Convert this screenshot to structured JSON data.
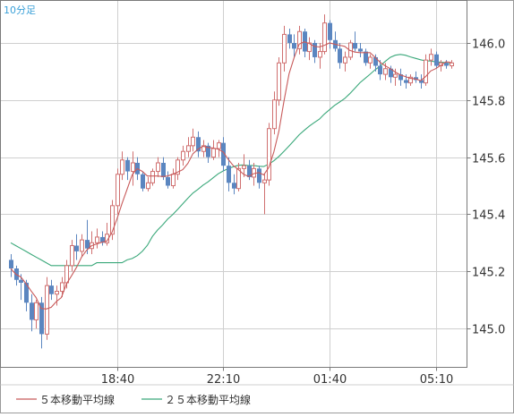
{
  "chart_data": {
    "type": "candlestick",
    "timeframe_label": "10分足",
    "y_ticks": [
      145.0,
      145.2,
      145.4,
      145.6,
      145.8,
      146.0
    ],
    "y_tick_labels": [
      "145.0",
      "145.2",
      "145.4",
      "145.6",
      "145.8",
      "146.0"
    ],
    "ylim": [
      144.9,
      146.12
    ],
    "x_tick_labels": [
      "18:40",
      "22:10",
      "01:40",
      "05:10"
    ],
    "x_tick_index": [
      21,
      42,
      63,
      84
    ],
    "n_bars": 88,
    "legend": [
      {
        "label": "５本移動平均線",
        "color": "#c85a5a"
      },
      {
        "label": "２５本移動平均線",
        "color": "#3aa87a"
      }
    ],
    "colors": {
      "up": "#d07070",
      "down": "#5b86c0",
      "ma5": "#c85a5a",
      "ma25": "#3aa87a",
      "grid": "#cfcfcf",
      "axis": "#7a7a7a",
      "text": "#333333",
      "timeframe": "#3aa0d8"
    },
    "candles": [
      [
        145.24,
        145.26,
        145.18,
        145.21
      ],
      [
        145.21,
        145.22,
        145.15,
        145.17
      ],
      [
        145.17,
        145.19,
        145.1,
        145.16
      ],
      [
        145.16,
        145.17,
        145.06,
        145.09
      ],
      [
        145.09,
        145.12,
        144.99,
        145.03
      ],
      [
        145.03,
        145.1,
        145.0,
        145.09
      ],
      [
        145.09,
        145.11,
        144.93,
        144.98
      ],
      [
        144.98,
        145.18,
        144.96,
        145.15
      ],
      [
        145.15,
        145.17,
        145.1,
        145.12
      ],
      [
        145.12,
        145.15,
        145.08,
        145.13
      ],
      [
        145.13,
        145.18,
        145.11,
        145.16
      ],
      [
        145.16,
        145.24,
        145.14,
        145.22
      ],
      [
        145.22,
        145.31,
        145.2,
        145.29
      ],
      [
        145.29,
        145.33,
        145.24,
        145.27
      ],
      [
        145.27,
        145.33,
        145.25,
        145.31
      ],
      [
        145.31,
        145.38,
        145.26,
        145.28
      ],
      [
        145.28,
        145.34,
        145.26,
        145.3
      ],
      [
        145.3,
        145.35,
        145.28,
        145.32
      ],
      [
        145.32,
        145.34,
        145.29,
        145.3
      ],
      [
        145.3,
        145.37,
        145.29,
        145.33
      ],
      [
        145.33,
        145.45,
        145.31,
        145.43
      ],
      [
        145.43,
        145.56,
        145.4,
        145.54
      ],
      [
        145.54,
        145.62,
        145.52,
        145.59
      ],
      [
        145.59,
        145.6,
        145.52,
        145.55
      ],
      [
        145.55,
        145.62,
        145.5,
        145.58
      ],
      [
        145.58,
        145.6,
        145.52,
        145.54
      ],
      [
        145.54,
        145.55,
        145.48,
        145.49
      ],
      [
        145.49,
        145.53,
        145.48,
        145.51
      ],
      [
        145.51,
        145.56,
        145.5,
        145.55
      ],
      [
        145.55,
        145.6,
        145.53,
        145.58
      ],
      [
        145.58,
        145.6,
        145.52,
        145.53
      ],
      [
        145.53,
        145.55,
        145.49,
        145.5
      ],
      [
        145.5,
        145.56,
        145.49,
        145.54
      ],
      [
        145.54,
        145.6,
        145.52,
        145.59
      ],
      [
        145.59,
        145.64,
        145.57,
        145.62
      ],
      [
        145.62,
        145.67,
        145.6,
        145.64
      ],
      [
        145.64,
        145.7,
        145.62,
        145.67
      ],
      [
        145.67,
        145.69,
        145.6,
        145.62
      ],
      [
        145.62,
        145.66,
        145.6,
        145.64
      ],
      [
        145.64,
        145.65,
        145.58,
        145.6
      ],
      [
        145.6,
        145.66,
        145.59,
        145.63
      ],
      [
        145.63,
        145.66,
        145.6,
        145.65
      ],
      [
        145.65,
        145.67,
        145.55,
        145.57
      ],
      [
        145.57,
        145.6,
        145.48,
        145.51
      ],
      [
        145.51,
        145.54,
        145.47,
        145.49
      ],
      [
        145.49,
        145.58,
        145.48,
        145.56
      ],
      [
        145.56,
        145.61,
        145.53,
        145.57
      ],
      [
        145.57,
        145.59,
        145.52,
        145.53
      ],
      [
        145.53,
        145.58,
        145.5,
        145.56
      ],
      [
        145.56,
        145.57,
        145.49,
        145.51
      ],
      [
        145.51,
        145.54,
        145.4,
        145.52
      ],
      [
        145.52,
        145.72,
        145.5,
        145.7
      ],
      [
        145.7,
        145.83,
        145.68,
        145.8
      ],
      [
        145.8,
        145.95,
        145.78,
        145.93
      ],
      [
        145.93,
        146.06,
        145.9,
        146.03
      ],
      [
        146.03,
        146.05,
        145.98,
        146.0
      ],
      [
        146.0,
        146.03,
        145.95,
        145.98
      ],
      [
        145.98,
        146.06,
        145.96,
        146.04
      ],
      [
        146.04,
        146.05,
        145.95,
        145.97
      ],
      [
        145.97,
        146.02,
        145.94,
        146.0
      ],
      [
        146.0,
        146.01,
        145.93,
        145.95
      ],
      [
        145.95,
        146.0,
        145.91,
        145.97
      ],
      [
        145.97,
        146.1,
        145.96,
        146.07
      ],
      [
        146.07,
        146.08,
        145.98,
        146.01
      ],
      [
        146.01,
        146.04,
        145.97,
        145.98
      ],
      [
        145.98,
        146.0,
        145.91,
        145.93
      ],
      [
        145.93,
        145.97,
        145.9,
        145.95
      ],
      [
        145.95,
        146.01,
        145.94,
        146.0
      ],
      [
        146.0,
        146.04,
        145.97,
        145.98
      ],
      [
        145.98,
        146.0,
        145.95,
        145.97
      ],
      [
        145.97,
        145.98,
        145.92,
        145.93
      ],
      [
        145.93,
        145.96,
        145.91,
        145.95
      ],
      [
        145.95,
        145.96,
        145.9,
        145.92
      ],
      [
        145.92,
        145.94,
        145.87,
        145.89
      ],
      [
        145.89,
        145.93,
        145.87,
        145.91
      ],
      [
        145.91,
        145.92,
        145.86,
        145.88
      ],
      [
        145.88,
        145.91,
        145.85,
        145.89
      ],
      [
        145.89,
        145.91,
        145.85,
        145.87
      ],
      [
        145.87,
        145.89,
        145.84,
        145.86
      ],
      [
        145.86,
        145.89,
        145.85,
        145.88
      ],
      [
        145.88,
        145.9,
        145.86,
        145.87
      ],
      [
        145.87,
        145.89,
        145.84,
        145.86
      ],
      [
        145.86,
        145.96,
        145.85,
        145.94
      ],
      [
        145.94,
        145.98,
        145.92,
        145.96
      ],
      [
        145.96,
        145.97,
        145.91,
        145.92
      ],
      [
        145.92,
        145.94,
        145.9,
        145.93
      ],
      [
        145.93,
        145.94,
        145.91,
        145.92
      ],
      [
        145.92,
        145.94,
        145.91,
        145.93
      ]
    ],
    "ma25_start": [
      145.3,
      145.29,
      145.28,
      145.27,
      145.26,
      145.25,
      145.24,
      145.23,
      145.22,
      145.22,
      145.22,
      145.22,
      145.22,
      145.22,
      145.22,
      145.22,
      145.22,
      145.23,
      145.23,
      145.23,
      145.23,
      145.23,
      145.23,
      145.24
    ]
  }
}
